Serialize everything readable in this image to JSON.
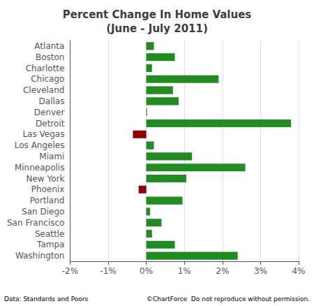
{
  "chart_data": {
    "type": "bar",
    "orientation": "horizontal",
    "title": "Percent Change In Home Values\n(June - July 2011)",
    "categories": [
      "Atlanta",
      "Boston",
      "Charlotte",
      "Chicago",
      "Cleveland",
      "Dallas",
      "Denver",
      "Detroit",
      "Las Vegas",
      "Los Angeles",
      "Miami",
      "Minneapolis",
      "New York",
      "Phoenix",
      "Portland",
      "San Diego",
      "San Francisco",
      "Seattle",
      "Tampa",
      "Washington"
    ],
    "values": [
      0.2,
      0.75,
      0.15,
      1.9,
      0.7,
      0.85,
      0.02,
      3.8,
      -0.35,
      0.2,
      1.2,
      2.6,
      1.05,
      -0.2,
      0.95,
      0.1,
      0.4,
      0.15,
      0.75,
      2.4
    ],
    "colors": [
      "#228B22",
      "#228B22",
      "#228B22",
      "#228B22",
      "#228B22",
      "#228B22",
      "#228B22",
      "#228B22",
      "#8B0000",
      "#228B22",
      "#228B22",
      "#228B22",
      "#228B22",
      "#8B0000",
      "#228B22",
      "#228B22",
      "#228B22",
      "#228B22",
      "#228B22",
      "#228B22"
    ],
    "xlim": [
      -2.0,
      4.0
    ],
    "xticks": [
      {
        "value": -2,
        "label": "-2%"
      },
      {
        "value": -1,
        "label": "-1%"
      },
      {
        "value": 0,
        "label": "0%"
      },
      {
        "value": 1,
        "label": "1%"
      },
      {
        "value": 2,
        "label": "2%"
      },
      {
        "value": 3,
        "label": "3%"
      },
      {
        "value": 4,
        "label": "4%"
      }
    ],
    "grid": true,
    "annotations": [
      "Data: Standards and Poors",
      "©ChartForce  Do not reproduce without permission."
    ]
  }
}
